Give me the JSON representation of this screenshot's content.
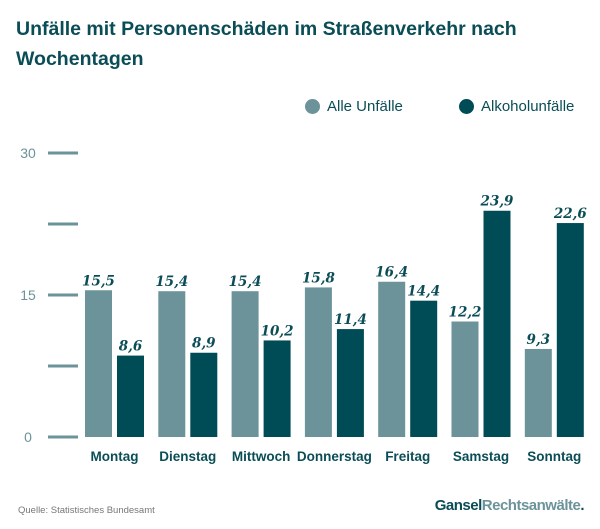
{
  "chart_data": {
    "type": "bar",
    "title": "Unfälle mit Personenschäden im Straßenverkehr nach Wochentagen",
    "categories": [
      "Montag",
      "Dienstag",
      "Mittwoch",
      "Donnerstag",
      "Freitag",
      "Samstag",
      "Sonntag"
    ],
    "series": [
      {
        "name": "Alle Unfälle",
        "color": "#6b9399",
        "values": [
          15.5,
          15.4,
          15.4,
          15.8,
          16.4,
          12.2,
          9.3
        ],
        "labels": [
          "15,5",
          "15,4",
          "15,4",
          "15,8",
          "16,4",
          "12,2",
          "9,3"
        ]
      },
      {
        "name": "Alkoholunfälle",
        "color": "#004c56",
        "values": [
          8.6,
          8.9,
          10.2,
          11.4,
          14.4,
          23.9,
          22.6
        ],
        "labels": [
          "8,6",
          "8,9",
          "10,2",
          "11,4",
          "14,4",
          "23,9",
          "22,6"
        ]
      }
    ],
    "yticks": [
      0,
      7.5,
      15,
      22.5,
      30
    ],
    "ytick_labels": [
      "0",
      "15",
      "30"
    ],
    "ylim": [
      0,
      30
    ],
    "legend": "top-right"
  },
  "source": "Quelle: Statistisches Bundesamt",
  "brand": {
    "part1": "Gansel",
    "part2": "Rechtsanwälte",
    "dot": "."
  }
}
